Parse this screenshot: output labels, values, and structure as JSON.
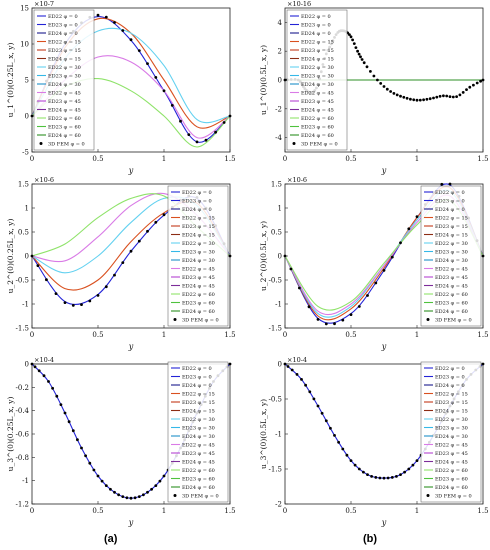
{
  "legend_entries": [
    {
      "label": "ED22 φ = 0",
      "color": "#2323d6",
      "marker": "o"
    },
    {
      "label": "ED23 φ = 0",
      "color": "#2323d6",
      "marker": "none"
    },
    {
      "label": "ED24 φ = 0",
      "color": "#1a1a8c",
      "marker": "none"
    },
    {
      "label": "ED22 φ = 15",
      "color": "#d9501f",
      "marker": "none"
    },
    {
      "label": "ED23 φ = 15",
      "color": "#c23a1a",
      "marker": "none"
    },
    {
      "label": "ED24 φ = 15",
      "color": "#8c2d14",
      "marker": "none"
    },
    {
      "label": "ED22 φ = 30",
      "color": "#63d1f0",
      "marker": "none"
    },
    {
      "label": "ED23 φ = 30",
      "color": "#35b8e8",
      "marker": "none"
    },
    {
      "label": "ED24 φ = 30",
      "color": "#1f8fc8",
      "marker": "none"
    },
    {
      "label": "ED22 φ = 45",
      "color": "#d97be6",
      "marker": "none"
    },
    {
      "label": "ED23 φ = 45",
      "color": "#b444d1",
      "marker": "none"
    },
    {
      "label": "ED24 φ = 45",
      "color": "#7d2d99",
      "marker": "none"
    },
    {
      "label": "ED22 φ = 60",
      "color": "#8fe36a",
      "marker": "none"
    },
    {
      "label": "ED23 φ = 60",
      "color": "#4fc23d",
      "marker": "none"
    },
    {
      "label": "ED24 φ = 60",
      "color": "#2e8f24",
      "marker": "none"
    },
    {
      "label": "3D FEM φ = 0",
      "color": "#000000",
      "marker": "dot"
    }
  ],
  "panel_labels": [
    "(a)",
    "(b)"
  ],
  "chart_data": [
    {
      "type": "line",
      "ylabel": "u_1^(0)(0.25L_x, y)",
      "xlabel": "y",
      "scale_label": "×10^{-7}",
      "xlim": [
        0,
        1.5
      ],
      "ylim": [
        -5,
        15
      ],
      "xticks": [
        "0",
        "0.5",
        "1",
        "1.5"
      ],
      "yticks": [
        "-5",
        "0",
        "5",
        "10",
        "15"
      ],
      "legend_placement": "bottom-left",
      "series": [
        {
          "name": "ED22 φ = 0",
          "x": [
            0,
            0.25,
            0.5,
            0.75,
            1.0,
            1.25,
            1.5
          ],
          "y": [
            0,
            10,
            13.8,
            10.5,
            3.5,
            -3.6,
            0
          ]
        },
        {
          "name": "ED22 φ = 15",
          "x": [
            0,
            0.25,
            0.5,
            0.75,
            1.0,
            1.25,
            1.5
          ],
          "y": [
            0,
            9.5,
            13.5,
            11.5,
            5,
            -1.5,
            0
          ]
        },
        {
          "name": "ED22 φ = 30",
          "x": [
            0,
            0.25,
            0.5,
            0.75,
            1.0,
            1.25,
            1.5
          ],
          "y": [
            0,
            8,
            11.8,
            11.5,
            7,
            -0.5,
            0
          ]
        },
        {
          "name": "ED22 φ = 45",
          "x": [
            0,
            0.25,
            0.5,
            0.75,
            1.0,
            1.25,
            1.5
          ],
          "y": [
            0,
            5,
            8.2,
            7.5,
            3.5,
            -3,
            0
          ]
        },
        {
          "name": "ED22 φ = 60",
          "x": [
            0,
            0.25,
            0.5,
            0.75,
            1.0,
            1.25,
            1.5
          ],
          "y": [
            0,
            4,
            5.2,
            3.5,
            0,
            -4.3,
            0
          ]
        },
        {
          "name": "3D FEM φ = 0",
          "x": [
            0,
            0.25,
            0.5,
            0.75,
            1.0,
            1.25,
            1.5
          ],
          "y": [
            0,
            10.2,
            14,
            10.6,
            3.5,
            -3.6,
            0
          ]
        }
      ]
    },
    {
      "type": "line",
      "ylabel": "u_1^(0)(0.5L_x, y)",
      "xlabel": "y",
      "scale_label": "×10^{-16}",
      "xlim": [
        0,
        1.5
      ],
      "ylim": [
        -5,
        5
      ],
      "xticks": [
        "0",
        "0.5",
        "1",
        "1.5"
      ],
      "yticks": [
        "-4",
        "-2",
        "0",
        "2",
        "4"
      ],
      "legend_placement": "top-left",
      "series": [
        {
          "name": "ED24 φ = 60",
          "x": [
            0,
            1.5
          ],
          "y": [
            0,
            0
          ]
        },
        {
          "name": "3D FEM φ = 0",
          "x": [
            0,
            0.1,
            0.15,
            0.2,
            0.25,
            0.3,
            0.35,
            0.4,
            0.45,
            0.5,
            0.55,
            0.6,
            0.7,
            0.8,
            0.9,
            1.0,
            1.1,
            1.2,
            1.3,
            1.4,
            1.5
          ],
          "y": [
            0,
            0,
            -0.6,
            -0.9,
            -0.3,
            1.5,
            2.5,
            3.3,
            3.4,
            3.0,
            2.0,
            1.2,
            0,
            -0.8,
            -1.2,
            -1.4,
            -1.3,
            -1.1,
            -1.15,
            -0.5,
            0
          ]
        }
      ]
    },
    {
      "type": "line",
      "ylabel": "u_2^(0)(0.25L_x, y)",
      "xlabel": "y",
      "scale_label": "×10^{-6}",
      "xlim": [
        0,
        1.5
      ],
      "ylim": [
        -1.5,
        1.5
      ],
      "xticks": [
        "0",
        "0.5",
        "1",
        "1.5"
      ],
      "yticks": [
        "-1.5",
        "-1",
        "-0.5",
        "0",
        "0.5",
        "1",
        "1.5"
      ],
      "legend_placement": "bottom-right",
      "series": [
        {
          "name": "ED22 φ = 0",
          "x": [
            0,
            0.25,
            0.5,
            0.75,
            1.0,
            1.25,
            1.5
          ],
          "y": [
            0,
            -0.95,
            -0.8,
            0.1,
            0.85,
            1.2,
            0
          ]
        },
        {
          "name": "ED22 φ = 15",
          "x": [
            0,
            0.25,
            0.5,
            0.75,
            1.0,
            1.25,
            1.5
          ],
          "y": [
            0,
            -0.68,
            -0.5,
            0.3,
            0.9,
            1.1,
            0
          ]
        },
        {
          "name": "ED22 φ = 30",
          "x": [
            0,
            0.25,
            0.5,
            0.75,
            1.0,
            1.25,
            1.5
          ],
          "y": [
            0,
            -0.35,
            0.0,
            0.7,
            1.2,
            1.05,
            0
          ]
        },
        {
          "name": "ED22 φ = 45",
          "x": [
            0,
            0.25,
            0.5,
            0.75,
            1.0,
            1.25,
            1.5
          ],
          "y": [
            0,
            -0.1,
            0.4,
            1.05,
            1.3,
            0.85,
            0
          ]
        },
        {
          "name": "ED22 φ = 60",
          "x": [
            0,
            0.25,
            0.5,
            0.75,
            1.0,
            1.25,
            1.5
          ],
          "y": [
            0,
            0.25,
            0.8,
            1.2,
            1.25,
            0.6,
            0
          ]
        },
        {
          "name": "3D FEM φ = 0",
          "x": [
            0,
            0.25,
            0.5,
            0.75,
            1.0,
            1.25,
            1.5
          ],
          "y": [
            0,
            -0.97,
            -0.82,
            0.1,
            0.86,
            1.22,
            0
          ]
        }
      ]
    },
    {
      "type": "line",
      "ylabel": "u_2^(0)(0.5L_x, y)",
      "xlabel": "y",
      "scale_label": "×10^{-6}",
      "xlim": [
        0,
        1.5
      ],
      "ylim": [
        -1.5,
        1.5
      ],
      "xticks": [
        "0",
        "0.5",
        "1",
        "1.5"
      ],
      "yticks": [
        "-1.5",
        "-1",
        "-0.5",
        "0",
        "0.5",
        "1",
        "1.5"
      ],
      "legend_placement": "bottom-right",
      "series": [
        {
          "name": "ED22 φ = 0",
          "x": [
            0,
            0.25,
            0.5,
            0.75,
            1.0,
            1.25,
            1.5
          ],
          "y": [
            0,
            -1.3,
            -1.2,
            -0.3,
            0.8,
            1.48,
            0
          ]
        },
        {
          "name": "ED22 φ = 15",
          "x": [
            0,
            0.25,
            0.5,
            0.75,
            1.0,
            1.25,
            1.5
          ],
          "y": [
            0,
            -1.25,
            -1.1,
            -0.25,
            0.8,
            1.42,
            0
          ]
        },
        {
          "name": "ED22 φ = 30",
          "x": [
            0,
            0.25,
            0.5,
            0.75,
            1.0,
            1.25,
            1.5
          ],
          "y": [
            0,
            -1.2,
            -1.05,
            -0.2,
            0.75,
            1.35,
            0
          ]
        },
        {
          "name": "ED22 φ = 45",
          "x": [
            0,
            0.25,
            0.5,
            0.75,
            1.0,
            1.25,
            1.5
          ],
          "y": [
            0,
            -1.15,
            -1.0,
            -0.2,
            0.7,
            1.25,
            0
          ]
        },
        {
          "name": "ED22 φ = 60",
          "x": [
            0,
            0.25,
            0.5,
            0.75,
            1.0,
            1.25,
            1.5
          ],
          "y": [
            0,
            -1.05,
            -0.95,
            -0.15,
            0.65,
            1.15,
            0
          ]
        },
        {
          "name": "3D FEM φ = 0",
          "x": [
            0,
            0.25,
            0.5,
            0.75,
            1.0,
            1.25,
            1.5
          ],
          "y": [
            0,
            -1.32,
            -1.22,
            -0.3,
            0.82,
            1.5,
            0
          ]
        }
      ]
    },
    {
      "type": "line",
      "ylabel": "u_3^(0)(0.25L_x, y)",
      "xlabel": "y",
      "scale_label": "×10^{-4}",
      "xlim": [
        0,
        1.5
      ],
      "ylim": [
        -1.2,
        0
      ],
      "xticks": [
        "0",
        "0.5",
        "1",
        "1.5"
      ],
      "yticks": [
        "-1.2",
        "-1",
        "-0.8",
        "-0.6",
        "-0.4",
        "-0.2",
        "0"
      ],
      "legend_placement": "bottom-right",
      "series": [
        {
          "name": "ED22 φ = 0",
          "x": [
            0,
            0.125,
            0.25,
            0.375,
            0.5,
            0.625,
            0.75,
            0.875,
            1.0,
            1.125,
            1.25,
            1.375,
            1.5
          ],
          "y": [
            0,
            -0.15,
            -0.42,
            -0.72,
            -0.96,
            -1.1,
            -1.15,
            -1.1,
            -0.96,
            -0.72,
            -0.42,
            -0.15,
            0
          ]
        },
        {
          "name": "3D FEM φ = 0",
          "x": [
            0,
            0.125,
            0.25,
            0.375,
            0.5,
            0.625,
            0.75,
            0.875,
            1.0,
            1.125,
            1.25,
            1.375,
            1.5
          ],
          "y": [
            0,
            -0.15,
            -0.42,
            -0.72,
            -0.96,
            -1.1,
            -1.15,
            -1.1,
            -0.96,
            -0.72,
            -0.42,
            -0.15,
            0
          ]
        }
      ]
    },
    {
      "type": "line",
      "ylabel": "u_3^(0)(0.5L_x, y)",
      "xlabel": "y",
      "scale_label": "×10^{-4}",
      "xlim": [
        0,
        1.5
      ],
      "ylim": [
        -2,
        0
      ],
      "xticks": [
        "0",
        "0.5",
        "1",
        "1.5"
      ],
      "yticks": [
        "-2",
        "-1.5",
        "-1",
        "-0.5",
        "0"
      ],
      "legend_placement": "bottom-right",
      "series": [
        {
          "name": "ED22 φ = 0",
          "x": [
            0,
            0.125,
            0.25,
            0.375,
            0.5,
            0.625,
            0.75,
            0.875,
            1.0,
            1.125,
            1.25,
            1.375,
            1.5
          ],
          "y": [
            0,
            -0.22,
            -0.6,
            -1.02,
            -1.38,
            -1.58,
            -1.63,
            -1.58,
            -1.38,
            -1.02,
            -0.6,
            -0.22,
            0
          ]
        },
        {
          "name": "3D FEM φ = 0",
          "x": [
            0,
            0.125,
            0.25,
            0.375,
            0.5,
            0.625,
            0.75,
            0.875,
            1.0,
            1.125,
            1.25,
            1.375,
            1.5
          ],
          "y": [
            0,
            -0.22,
            -0.6,
            -1.02,
            -1.38,
            -1.58,
            -1.63,
            -1.58,
            -1.38,
            -1.02,
            -0.6,
            -0.22,
            0
          ]
        }
      ]
    }
  ]
}
